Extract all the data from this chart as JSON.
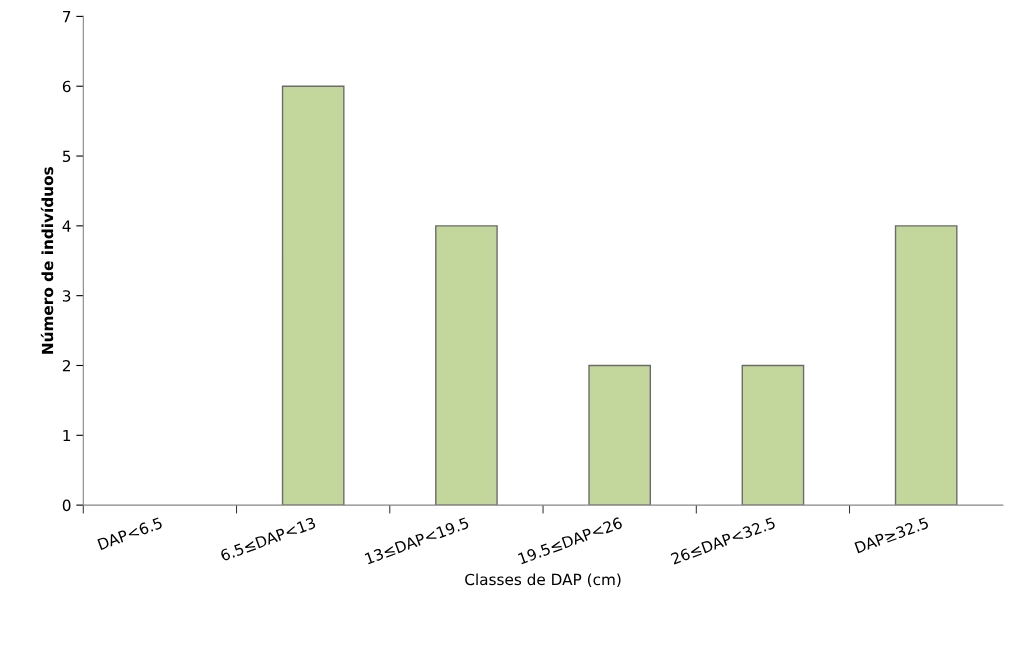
{
  "chart_data": {
    "type": "bar",
    "xlabel": "Classes de DAP (cm)",
    "ylabel": "Número de indivíduos",
    "categories": [
      "DAP<6.5",
      "6.5≤DAP<13",
      "13≤DAP<19.5",
      "19.5≤DAP<26",
      "26≤DAP<32.5",
      "DAP≥32.5"
    ],
    "values": [
      0,
      6,
      4,
      2,
      2,
      4
    ],
    "color": "#c3d69b",
    "ylim": [
      0,
      7
    ],
    "yticks": [
      0,
      1,
      2,
      3,
      4,
      5,
      6,
      7
    ],
    "grid": false,
    "legend": false
  }
}
